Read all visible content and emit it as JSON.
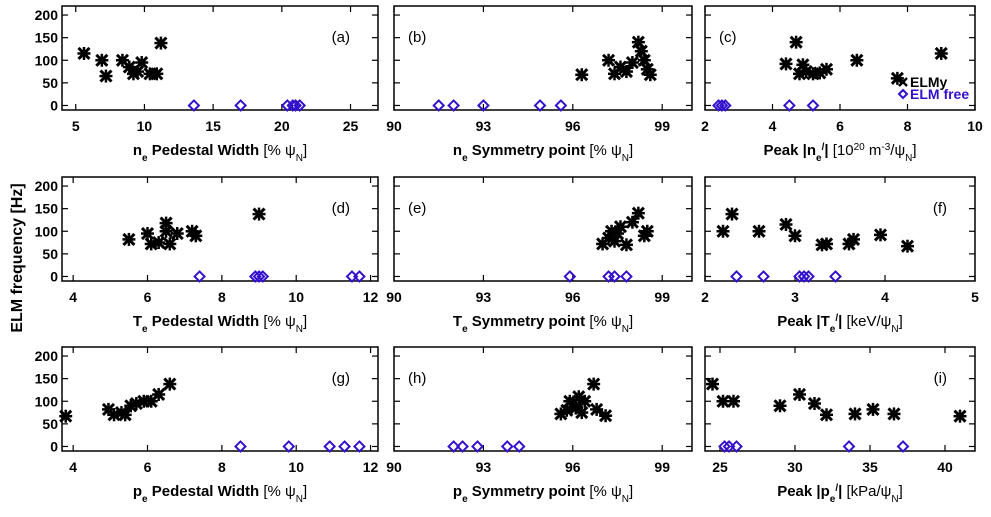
{
  "ylabel": "ELM frequency [Hz]",
  "legend": {
    "elmy_label": "ELMy",
    "free_label": "ELM free",
    "panel": "c",
    "placement": "right"
  },
  "colors": {
    "elmy": "#000000",
    "elm_free": "#3311cc",
    "axes": "#000000"
  },
  "chart_data": [
    {
      "type": "scatter",
      "panel_label": "(a)",
      "label_placement": "top-right",
      "xlabel": {
        "var": "n",
        "sub": "e",
        "text": " Pedestal Width ",
        "unit": "[% ψ",
        "unit_sub": "N",
        "unit_end": "]"
      },
      "xlim": [
        4,
        27
      ],
      "xticks": [
        5,
        10,
        15,
        20,
        25
      ],
      "xtick_labels": [
        "5",
        "10",
        "15",
        "20",
        "25"
      ],
      "ylim": [
        -10,
        220
      ],
      "yticks": [
        0,
        50,
        100,
        150,
        200
      ],
      "series": [
        {
          "name": "ELMy",
          "marker": "x",
          "points": [
            [
              5.6,
              115
            ],
            [
              6.9,
              100
            ],
            [
              7.2,
              65
            ],
            [
              8.4,
              100
            ],
            [
              8.9,
              85
            ],
            [
              9.2,
              70
            ],
            [
              9.8,
              95
            ],
            [
              10.4,
              70
            ],
            [
              10.9,
              70
            ],
            [
              11.2,
              138
            ],
            [
              9.5,
              75
            ]
          ]
        },
        {
          "name": "ELM free",
          "marker": "diamond",
          "points": [
            [
              13.6,
              0
            ],
            [
              17.0,
              0
            ],
            [
              20.4,
              0
            ],
            [
              20.8,
              0
            ],
            [
              21.0,
              0
            ],
            [
              21.3,
              0
            ]
          ]
        }
      ]
    },
    {
      "type": "scatter",
      "panel_label": "(b)",
      "label_placement": "top-left",
      "xlabel": {
        "var": "n",
        "sub": "e",
        "text": " Symmetry point ",
        "unit": "[% ψ",
        "unit_sub": "N",
        "unit_end": "]"
      },
      "xlim": [
        90,
        100
      ],
      "xticks": [
        90,
        93,
        96,
        99
      ],
      "xtick_labels": [
        "90",
        "93",
        "96",
        "99"
      ],
      "ylim": [
        -10,
        220
      ],
      "yticks": [
        0,
        50,
        100,
        150,
        200
      ],
      "series": [
        {
          "name": "ELMy",
          "marker": "x",
          "points": [
            [
              96.3,
              68
            ],
            [
              97.2,
              100
            ],
            [
              97.4,
              70
            ],
            [
              97.6,
              85
            ],
            [
              97.8,
              75
            ],
            [
              98.0,
              95
            ],
            [
              98.2,
              140
            ],
            [
              98.3,
              120
            ],
            [
              98.4,
              100
            ],
            [
              98.5,
              80
            ],
            [
              98.6,
              68
            ]
          ]
        },
        {
          "name": "ELM free",
          "marker": "diamond",
          "points": [
            [
              91.5,
              0
            ],
            [
              92.0,
              0
            ],
            [
              93.0,
              0
            ],
            [
              94.9,
              0
            ],
            [
              95.6,
              0
            ]
          ]
        }
      ]
    },
    {
      "type": "scatter",
      "panel_label": "(c)",
      "label_placement": "top-left",
      "xlabel": {
        "var": "Peak |n",
        "sub": "e",
        "sup": "/",
        "text": "| ",
        "unit": "[10",
        "unit_sup": "20",
        "unit_mid": " m",
        "unit_sup2": "-3",
        "unit2": "/ψ",
        "unit_sub": "N",
        "unit_end": "]"
      },
      "xlim": [
        2,
        10
      ],
      "xticks": [
        2,
        4,
        6,
        8,
        10
      ],
      "xtick_labels": [
        "2",
        "4",
        "6",
        "8",
        "10"
      ],
      "ylim": [
        -10,
        220
      ],
      "yticks": [
        0,
        50,
        100,
        150,
        200
      ],
      "series": [
        {
          "name": "ELMy",
          "marker": "x",
          "points": [
            [
              4.4,
              92
            ],
            [
              4.7,
              140
            ],
            [
              4.8,
              70
            ],
            [
              4.9,
              90
            ],
            [
              5.0,
              75
            ],
            [
              5.2,
              70
            ],
            [
              5.4,
              72
            ],
            [
              5.6,
              80
            ],
            [
              6.5,
              100
            ],
            [
              7.7,
              60
            ],
            [
              9.0,
              115
            ]
          ]
        },
        {
          "name": "ELM free",
          "marker": "diamond",
          "points": [
            [
              2.4,
              0
            ],
            [
              2.5,
              0
            ],
            [
              2.6,
              0
            ],
            [
              4.5,
              0
            ],
            [
              5.2,
              0
            ]
          ]
        }
      ]
    },
    {
      "type": "scatter",
      "panel_label": "(d)",
      "label_placement": "top-right",
      "xlabel": {
        "var": "T",
        "sub": "e",
        "text": " Pedestal Width ",
        "unit": "[% ψ",
        "unit_sub": "N",
        "unit_end": "]"
      },
      "xlim": [
        3.7,
        12.2
      ],
      "xticks": [
        4,
        6,
        8,
        10,
        12
      ],
      "xtick_labels": [
        "4",
        "6",
        "8",
        "10",
        "12"
      ],
      "ylim": [
        -10,
        220
      ],
      "yticks": [
        0,
        50,
        100,
        150,
        200
      ],
      "series": [
        {
          "name": "ELMy",
          "marker": "x",
          "points": [
            [
              5.5,
              82
            ],
            [
              6.0,
              95
            ],
            [
              6.1,
              72
            ],
            [
              6.3,
              75
            ],
            [
              6.5,
              100
            ],
            [
              6.5,
              118
            ],
            [
              6.6,
              72
            ],
            [
              6.8,
              95
            ],
            [
              7.2,
              100
            ],
            [
              7.3,
              90
            ],
            [
              9.0,
              138
            ]
          ]
        },
        {
          "name": "ELM free",
          "marker": "diamond",
          "points": [
            [
              7.4,
              0
            ],
            [
              8.9,
              0
            ],
            [
              9.0,
              0
            ],
            [
              9.1,
              0
            ],
            [
              11.5,
              0
            ],
            [
              11.7,
              0
            ]
          ]
        }
      ]
    },
    {
      "type": "scatter",
      "panel_label": "(e)",
      "label_placement": "top-left",
      "xlabel": {
        "var": "T",
        "sub": "e",
        "text": " Symmetry point ",
        "unit": "[% ψ",
        "unit_sub": "N",
        "unit_end": "]"
      },
      "xlim": [
        90,
        100
      ],
      "xticks": [
        90,
        93,
        96,
        99
      ],
      "xtick_labels": [
        "90",
        "93",
        "96",
        "99"
      ],
      "ylim": [
        -10,
        220
      ],
      "yticks": [
        0,
        50,
        100,
        150,
        200
      ],
      "series": [
        {
          "name": "ELMy",
          "marker": "x",
          "points": [
            [
              97.0,
              72
            ],
            [
              97.2,
              85
            ],
            [
              97.3,
              100
            ],
            [
              97.5,
              95
            ],
            [
              97.6,
              110
            ],
            [
              97.8,
              70
            ],
            [
              98.0,
              120
            ],
            [
              98.2,
              140
            ],
            [
              98.4,
              90
            ],
            [
              98.5,
              100
            ],
            [
              97.4,
              78
            ]
          ]
        },
        {
          "name": "ELM free",
          "marker": "diamond",
          "points": [
            [
              95.9,
              0
            ],
            [
              97.2,
              0
            ],
            [
              97.4,
              0
            ],
            [
              97.8,
              0
            ]
          ]
        }
      ]
    },
    {
      "type": "scatter",
      "panel_label": "(f)",
      "label_placement": "top-right",
      "xlabel": {
        "var": "Peak |T",
        "sub": "e",
        "sup": "/",
        "text": "| ",
        "unit": "[keV/ψ",
        "unit_sub": "N",
        "unit_end": "]"
      },
      "xlim": [
        2,
        5
      ],
      "xticks": [
        2,
        3,
        4,
        5
      ],
      "xtick_labels": [
        "2",
        "3",
        "4",
        "5"
      ],
      "ylim": [
        -10,
        220
      ],
      "yticks": [
        0,
        50,
        100,
        150,
        200
      ],
      "series": [
        {
          "name": "ELMy",
          "marker": "x",
          "points": [
            [
              2.2,
              100
            ],
            [
              2.3,
              138
            ],
            [
              2.6,
              100
            ],
            [
              2.9,
              115
            ],
            [
              3.0,
              90
            ],
            [
              3.3,
              70
            ],
            [
              3.35,
              72
            ],
            [
              3.6,
              72
            ],
            [
              3.65,
              82
            ],
            [
              3.95,
              92
            ],
            [
              4.25,
              67
            ]
          ]
        },
        {
          "name": "ELM free",
          "marker": "diamond",
          "points": [
            [
              2.35,
              0
            ],
            [
              2.65,
              0
            ],
            [
              3.05,
              0
            ],
            [
              3.1,
              0
            ],
            [
              3.15,
              0
            ],
            [
              3.45,
              0
            ]
          ]
        }
      ]
    },
    {
      "type": "scatter",
      "panel_label": "(g)",
      "label_placement": "top-right",
      "xlabel": {
        "var": "p",
        "sub": "e",
        "text": " Pedestal Width ",
        "unit": "[% ψ",
        "unit_sub": "N",
        "unit_end": "]"
      },
      "xlim": [
        3.7,
        12.2
      ],
      "xticks": [
        4,
        6,
        8,
        10,
        12
      ],
      "xtick_labels": [
        "4",
        "6",
        "8",
        "10",
        "12"
      ],
      "ylim": [
        -10,
        220
      ],
      "yticks": [
        0,
        50,
        100,
        150,
        200
      ],
      "series": [
        {
          "name": "ELMy",
          "marker": "x",
          "points": [
            [
              3.8,
              67
            ],
            [
              4.95,
              82
            ],
            [
              5.1,
              70
            ],
            [
              5.3,
              75
            ],
            [
              5.4,
              70
            ],
            [
              5.55,
              90
            ],
            [
              5.7,
              95
            ],
            [
              5.9,
              100
            ],
            [
              6.1,
              100
            ],
            [
              6.3,
              115
            ],
            [
              6.6,
              138
            ]
          ]
        },
        {
          "name": "ELM free",
          "marker": "diamond",
          "points": [
            [
              8.5,
              0
            ],
            [
              9.8,
              0
            ],
            [
              10.9,
              0
            ],
            [
              11.3,
              0
            ],
            [
              11.7,
              0
            ]
          ]
        }
      ]
    },
    {
      "type": "scatter",
      "panel_label": "(h)",
      "label_placement": "top-left",
      "xlabel": {
        "var": "p",
        "sub": "e",
        "text": " Symmetry point ",
        "unit": "[% ψ",
        "unit_sub": "N",
        "unit_end": "]"
      },
      "xlim": [
        90,
        100
      ],
      "xticks": [
        90,
        93,
        96,
        99
      ],
      "xtick_labels": [
        "90",
        "93",
        "96",
        "99"
      ],
      "ylim": [
        -10,
        220
      ],
      "yticks": [
        0,
        50,
        100,
        150,
        200
      ],
      "series": [
        {
          "name": "ELMy",
          "marker": "x",
          "points": [
            [
              95.6,
              72
            ],
            [
              95.8,
              80
            ],
            [
              95.9,
              100
            ],
            [
              96.0,
              95
            ],
            [
              96.1,
              85
            ],
            [
              96.2,
              110
            ],
            [
              96.3,
              75
            ],
            [
              96.4,
              100
            ],
            [
              96.7,
              138
            ],
            [
              96.8,
              82
            ],
            [
              97.1,
              68
            ]
          ]
        },
        {
          "name": "ELM free",
          "marker": "diamond",
          "points": [
            [
              92.0,
              0
            ],
            [
              92.3,
              0
            ],
            [
              92.8,
              0
            ],
            [
              93.8,
              0
            ],
            [
              94.2,
              0
            ]
          ]
        }
      ]
    },
    {
      "type": "scatter",
      "panel_label": "(i)",
      "label_placement": "top-right",
      "xlabel": {
        "var": "Peak |p",
        "sub": "e",
        "sup": "/",
        "text": "| ",
        "unit": "[kPa/ψ",
        "unit_sub": "N",
        "unit_end": "]"
      },
      "xlim": [
        24,
        42
      ],
      "xticks": [
        25,
        30,
        35,
        40
      ],
      "xtick_labels": [
        "25",
        "30",
        "35",
        "40"
      ],
      "ylim": [
        -10,
        220
      ],
      "yticks": [
        0,
        50,
        100,
        150,
        200
      ],
      "series": [
        {
          "name": "ELMy",
          "marker": "x",
          "points": [
            [
              24.5,
              138
            ],
            [
              25.2,
              100
            ],
            [
              25.9,
              100
            ],
            [
              29.0,
              90
            ],
            [
              30.3,
              115
            ],
            [
              31.3,
              95
            ],
            [
              32.1,
              70
            ],
            [
              34.0,
              72
            ],
            [
              35.2,
              82
            ],
            [
              36.6,
              72
            ],
            [
              41.0,
              67
            ]
          ]
        },
        {
          "name": "ELM free",
          "marker": "diamond",
          "points": [
            [
              25.3,
              0
            ],
            [
              25.6,
              0
            ],
            [
              26.1,
              0
            ],
            [
              33.6,
              0
            ],
            [
              37.2,
              0
            ]
          ]
        }
      ]
    }
  ]
}
